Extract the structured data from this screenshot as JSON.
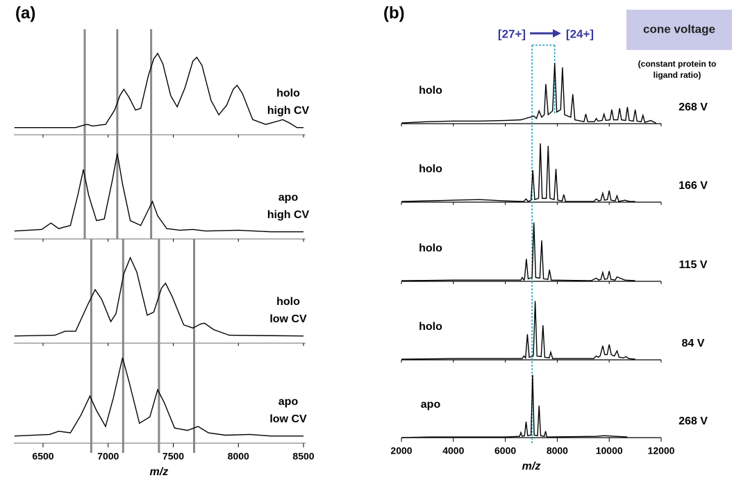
{
  "chart_data": [
    {
      "type": "line",
      "panel_label": "(a)",
      "xlabel": "m/z",
      "xlim": [
        6280,
        8500
      ],
      "xticks": [
        6500,
        7000,
        7500,
        8000,
        8500
      ],
      "reference_lines": [
        [
          6820,
          7070,
          7330
        ],
        [
          6870,
          7115,
          7390,
          7660
        ]
      ],
      "color": "#000000",
      "reference_color": "#888888",
      "series": [
        {
          "labels": [
            "holo",
            "high CV"
          ],
          "x": [
            6280,
            6750,
            6810,
            6840,
            6880,
            6980,
            7050,
            7090,
            7120,
            7160,
            7210,
            7250,
            7310,
            7350,
            7380,
            7420,
            7480,
            7530,
            7590,
            7650,
            7680,
            7720,
            7790,
            7850,
            7910,
            7960,
            7990,
            8030,
            8110,
            8210,
            8300,
            8340,
            8390,
            8450,
            8500
          ],
          "values": [
            2,
            2,
            5,
            6,
            4,
            6,
            24,
            42,
            50,
            40,
            24,
            26,
            68,
            88,
            95,
            82,
            42,
            28,
            52,
            85,
            90,
            80,
            36,
            18,
            30,
            50,
            55,
            45,
            12,
            6,
            10,
            12,
            8,
            2,
            2
          ]
        },
        {
          "labels": [
            "apo",
            "high CV"
          ],
          "x": [
            6280,
            6490,
            6560,
            6620,
            6710,
            6770,
            6810,
            6850,
            6910,
            6970,
            7030,
            7070,
            7110,
            7170,
            7250,
            7310,
            7340,
            7380,
            7450,
            7550,
            7650,
            7750,
            8000,
            8250,
            8500
          ],
          "values": [
            3,
            5,
            13,
            6,
            10,
            50,
            80,
            48,
            16,
            18,
            65,
            100,
            62,
            16,
            10,
            30,
            40,
            22,
            6,
            4,
            5,
            3,
            4,
            2,
            2
          ]
        },
        {
          "labels": [
            "holo",
            "low CV"
          ],
          "x": [
            6280,
            6590,
            6670,
            6750,
            6840,
            6900,
            6950,
            7020,
            7060,
            7120,
            7170,
            7220,
            7300,
            7350,
            7410,
            7440,
            7490,
            7580,
            7650,
            7710,
            7740,
            7810,
            7930,
            8500
          ],
          "values": [
            2,
            3,
            8,
            8,
            40,
            60,
            48,
            20,
            30,
            80,
            100,
            82,
            28,
            32,
            62,
            68,
            52,
            16,
            12,
            17,
            18,
            10,
            3,
            2
          ]
        },
        {
          "labels": [
            "apo",
            "low CV"
          ],
          "x": [
            6280,
            6550,
            6620,
            6710,
            6790,
            6860,
            6910,
            6980,
            7040,
            7110,
            7160,
            7240,
            7320,
            7380,
            7430,
            7510,
            7610,
            7690,
            7770,
            7900,
            8090,
            8250,
            8500
          ],
          "values": [
            2,
            4,
            8,
            6,
            28,
            52,
            34,
            14,
            50,
            100,
            70,
            18,
            26,
            60,
            44,
            12,
            9,
            14,
            6,
            3,
            4,
            2,
            2
          ]
        }
      ]
    },
    {
      "type": "line",
      "panel_label": "(b)",
      "xlabel": "m/z",
      "xlim": [
        2000,
        12000
      ],
      "xticks": [
        2000,
        4000,
        6000,
        8000,
        10000,
        12000
      ],
      "reference_lines": [
        7030,
        7900
      ],
      "color": "#000000",
      "reference_color": "#1aa3b5",
      "charge_labels": [
        "[27+]",
        "[24+]"
      ],
      "annotation_color": "#3a3aa0",
      "header": "cone voltage",
      "header_color": "#c9c9ea",
      "header_note": "(constant protein to ligand ratio)",
      "series": [
        {
          "label": "holo",
          "voltage": "268 V",
          "x": [
            2000,
            3000,
            4000,
            5000,
            6000,
            6600,
            6950,
            7100,
            7200,
            7300,
            7400,
            7500,
            7560,
            7650,
            7820,
            7900,
            7980,
            8130,
            8200,
            8280,
            8520,
            8600,
            8680,
            9030,
            9100,
            9170,
            9430,
            9500,
            9570,
            9730,
            9800,
            9870,
            10030,
            10100,
            10170,
            10330,
            10400,
            10470,
            10630,
            10700,
            10770,
            10930,
            11000,
            11070,
            11230,
            11300,
            11370,
            11600,
            11800
          ],
          "values": [
            1,
            3,
            4,
            4,
            5,
            6,
            10,
            12,
            8,
            20,
            10,
            14,
            62,
            14,
            20,
            95,
            18,
            22,
            88,
            14,
            10,
            46,
            6,
            3,
            15,
            3,
            3,
            8,
            4,
            5,
            15,
            5,
            6,
            22,
            6,
            6,
            24,
            6,
            5,
            26,
            5,
            4,
            22,
            4,
            3,
            13,
            2,
            5,
            1
          ]
        },
        {
          "label": "holo",
          "voltage": "166 V",
          "x": [
            2000,
            4000,
            5000,
            6000,
            6700,
            6800,
            6880,
            6990,
            7060,
            7130,
            7280,
            7350,
            7420,
            7580,
            7650,
            7720,
            7880,
            7950,
            8020,
            8190,
            8250,
            8320,
            9400,
            9500,
            9600,
            9680,
            9750,
            9820,
            9930,
            10000,
            10070,
            10230,
            10300,
            10370,
            10600,
            10800,
            11000
          ],
          "values": [
            1,
            3,
            4,
            2,
            1,
            5,
            1,
            3,
            50,
            4,
            6,
            92,
            6,
            6,
            88,
            6,
            4,
            52,
            3,
            2,
            12,
            1,
            1,
            5,
            2,
            3,
            14,
            3,
            4,
            18,
            3,
            2,
            10,
            1,
            3,
            1,
            1
          ]
        },
        {
          "label": "holo",
          "voltage": "115 V",
          "x": [
            2000,
            4000,
            6000,
            6600,
            6650,
            6720,
            6740,
            6810,
            6880,
            7030,
            7100,
            7170,
            7330,
            7400,
            7470,
            7640,
            7700,
            7770,
            9300,
            9500,
            9600,
            9680,
            9750,
            9820,
            9930,
            10000,
            10070,
            10230,
            10300,
            10600,
            11000
          ],
          "values": [
            1,
            2,
            2,
            2,
            6,
            2,
            4,
            35,
            4,
            6,
            92,
            6,
            5,
            64,
            4,
            3,
            18,
            2,
            1,
            5,
            2,
            3,
            14,
            3,
            4,
            16,
            3,
            2,
            7,
            2,
            1
          ]
        },
        {
          "label": "holo",
          "voltage": "84 V",
          "x": [
            2000,
            4000,
            6000,
            6650,
            6720,
            6780,
            6850,
            6920,
            7080,
            7150,
            7220,
            7380,
            7450,
            7520,
            7690,
            7750,
            7820,
            9400,
            9500,
            9580,
            9650,
            9750,
            9830,
            9920,
            10000,
            10080,
            10200,
            10300,
            10380,
            10550,
            10650,
            10750,
            11000
          ],
          "values": [
            1,
            2,
            2,
            2,
            6,
            3,
            40,
            4,
            6,
            92,
            6,
            5,
            54,
            4,
            3,
            12,
            2,
            2,
            6,
            4,
            6,
            22,
            8,
            8,
            24,
            8,
            6,
            14,
            4,
            3,
            5,
            2,
            1
          ]
        },
        {
          "label": "apo",
          "voltage": "268 V",
          "x": [
            2000,
            3100,
            4000,
            6000,
            6550,
            6600,
            6650,
            6740,
            6800,
            6860,
            6990,
            7050,
            7110,
            7240,
            7300,
            7360,
            7500,
            7550,
            7600,
            9500,
            9800,
            10700
          ],
          "values": [
            0,
            1,
            1,
            1,
            2,
            8,
            2,
            3,
            25,
            3,
            4,
            98,
            4,
            3,
            50,
            3,
            2,
            10,
            1,
            2,
            3,
            1
          ]
        }
      ]
    }
  ]
}
